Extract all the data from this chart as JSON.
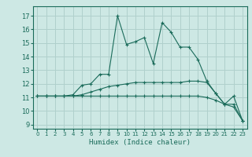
{
  "xlabel": "Humidex (Indice chaleur)",
  "background_color": "#cde8e4",
  "grid_color": "#b0d0cc",
  "line_color": "#1a6b5a",
  "xlim": [
    -0.5,
    23.5
  ],
  "ylim": [
    8.7,
    17.7
  ],
  "yticks": [
    9,
    10,
    11,
    12,
    13,
    14,
    15,
    16,
    17
  ],
  "xticks": [
    0,
    1,
    2,
    3,
    4,
    5,
    6,
    7,
    8,
    9,
    10,
    11,
    12,
    13,
    14,
    15,
    16,
    17,
    18,
    19,
    20,
    21,
    22,
    23
  ],
  "series": [
    {
      "x": [
        0,
        1,
        2,
        3,
        4,
        5,
        6,
        7,
        8,
        9,
        10,
        11,
        12,
        13,
        14,
        15,
        16,
        17,
        18,
        19,
        20,
        21,
        22,
        23
      ],
      "y": [
        11.1,
        11.1,
        11.1,
        11.1,
        11.1,
        11.1,
        11.1,
        11.1,
        11.1,
        11.1,
        11.1,
        11.1,
        11.1,
        11.1,
        11.1,
        11.1,
        11.1,
        11.1,
        11.1,
        11.0,
        10.8,
        10.5,
        10.3,
        9.3
      ]
    },
    {
      "x": [
        0,
        1,
        2,
        3,
        4,
        5,
        6,
        7,
        8,
        9,
        10,
        11,
        12,
        13,
        14,
        15,
        16,
        17,
        18,
        19,
        20,
        21,
        22,
        23
      ],
      "y": [
        11.1,
        11.1,
        11.1,
        11.1,
        11.1,
        11.2,
        11.4,
        11.6,
        11.8,
        11.9,
        12.0,
        12.1,
        12.1,
        12.1,
        12.1,
        12.1,
        12.1,
        12.2,
        12.2,
        12.1,
        11.3,
        10.5,
        10.5,
        9.3
      ]
    },
    {
      "x": [
        0,
        1,
        2,
        3,
        4,
        5,
        6,
        7,
        8,
        9,
        10,
        11,
        12,
        13,
        14,
        15,
        16,
        17,
        18,
        19,
        20,
        21,
        22,
        23
      ],
      "y": [
        11.1,
        11.1,
        11.1,
        11.1,
        11.2,
        11.9,
        12.0,
        12.7,
        12.7,
        17.0,
        14.9,
        15.1,
        15.4,
        13.5,
        16.5,
        15.8,
        14.7,
        14.7,
        13.8,
        12.2,
        11.3,
        10.5,
        11.1,
        9.3
      ]
    }
  ]
}
